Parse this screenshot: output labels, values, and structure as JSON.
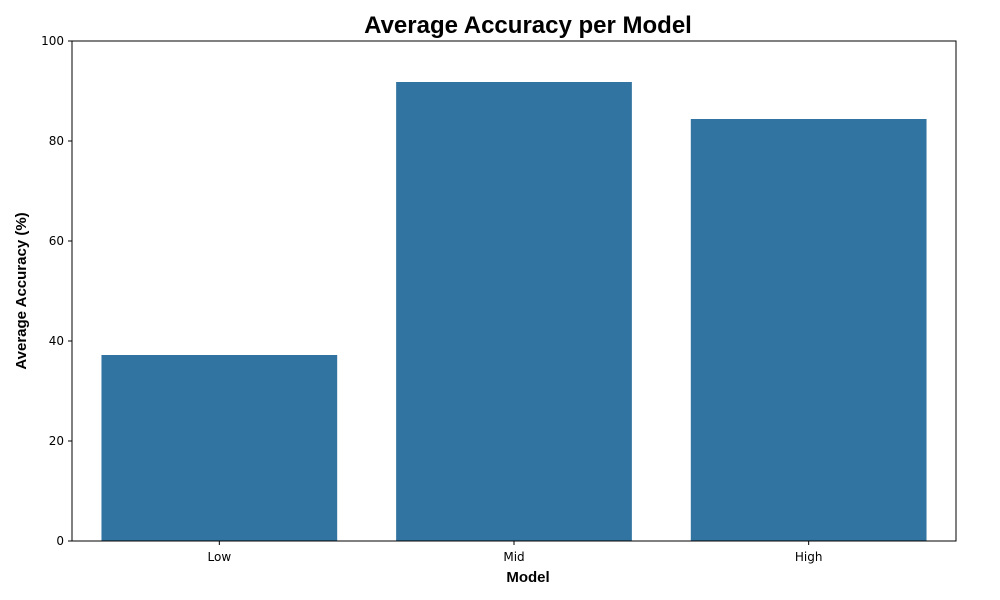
{
  "chart_data": {
    "type": "bar",
    "title": "Average Accuracy per Model",
    "xlabel": "Model",
    "ylabel": "Average Accuracy (%)",
    "categories": [
      "Low",
      "Mid",
      "High"
    ],
    "values": [
      37.2,
      91.8,
      84.4
    ],
    "ylim": [
      0,
      100
    ],
    "yticks": [
      0,
      20,
      40,
      60,
      80,
      100
    ],
    "grid": false,
    "legend": "none",
    "bar_color": "#3274a1"
  }
}
